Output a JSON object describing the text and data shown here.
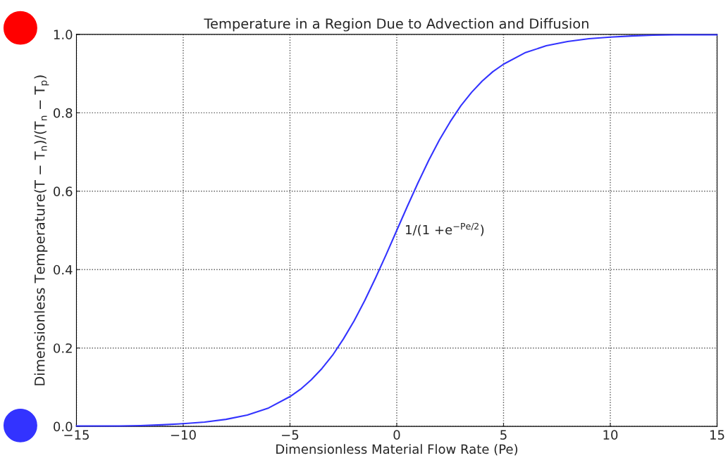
{
  "chart_data": {
    "type": "line",
    "title": "Temperature in a Region Due to Advection and Diffusion",
    "xlabel": "Dimensionless Material Flow Rate (Pe)",
    "ylabel": "Dimensionless Temperature(T − T$_{n}$)/(T$_{n}$ − T$_{p}$)",
    "x": [
      -15,
      -14,
      -13,
      -12,
      -11,
      -10,
      -9,
      -8,
      -7,
      -6,
      -5,
      -4.5,
      -4,
      -3.5,
      -3,
      -2.5,
      -2,
      -1.5,
      -1,
      -0.5,
      0,
      0.5,
      1,
      1.5,
      2,
      2.5,
      3,
      3.5,
      4,
      4.5,
      5,
      6,
      7,
      8,
      9,
      10,
      11,
      12,
      13,
      14,
      15
    ],
    "series": [
      {
        "color": "#3333ff",
        "values": [
          0.001,
          0.001,
          0.001,
          0.002,
          0.004,
          0.007,
          0.011,
          0.018,
          0.029,
          0.047,
          0.076,
          0.095,
          0.119,
          0.148,
          0.182,
          0.223,
          0.269,
          0.321,
          0.378,
          0.438,
          0.5,
          0.562,
          0.622,
          0.679,
          0.731,
          0.777,
          0.818,
          0.852,
          0.881,
          0.905,
          0.924,
          0.953,
          0.971,
          0.982,
          0.989,
          0.993,
          0.996,
          0.998,
          0.999,
          0.999,
          0.999
        ]
      }
    ],
    "annotations": [
      {
        "text": "1/(1 +e$^{−Pe/2}$)",
        "x": 0,
        "y": 0.5
      }
    ],
    "xlim": [
      -15,
      15
    ],
    "xticks": [
      {
        "value": -15,
        "label": "−15"
      },
      {
        "value": -10,
        "label": "−10"
      },
      {
        "value": -5,
        "label": "−5"
      },
      0,
      5,
      10,
      15
    ],
    "ylim": [
      0,
      1
    ],
    "yticks": [
      {
        "value": 0,
        "label": "0.0"
      },
      {
        "value": 0.2,
        "label": "0.2"
      },
      {
        "value": 0.4,
        "label": "0.4"
      },
      {
        "value": 0.6,
        "label": "0.6"
      },
      {
        "value": 0.8,
        "label": "0.8"
      },
      {
        "value": 1,
        "label": "1.0"
      }
    ],
    "grid": true,
    "line_style": "solid"
  }
}
